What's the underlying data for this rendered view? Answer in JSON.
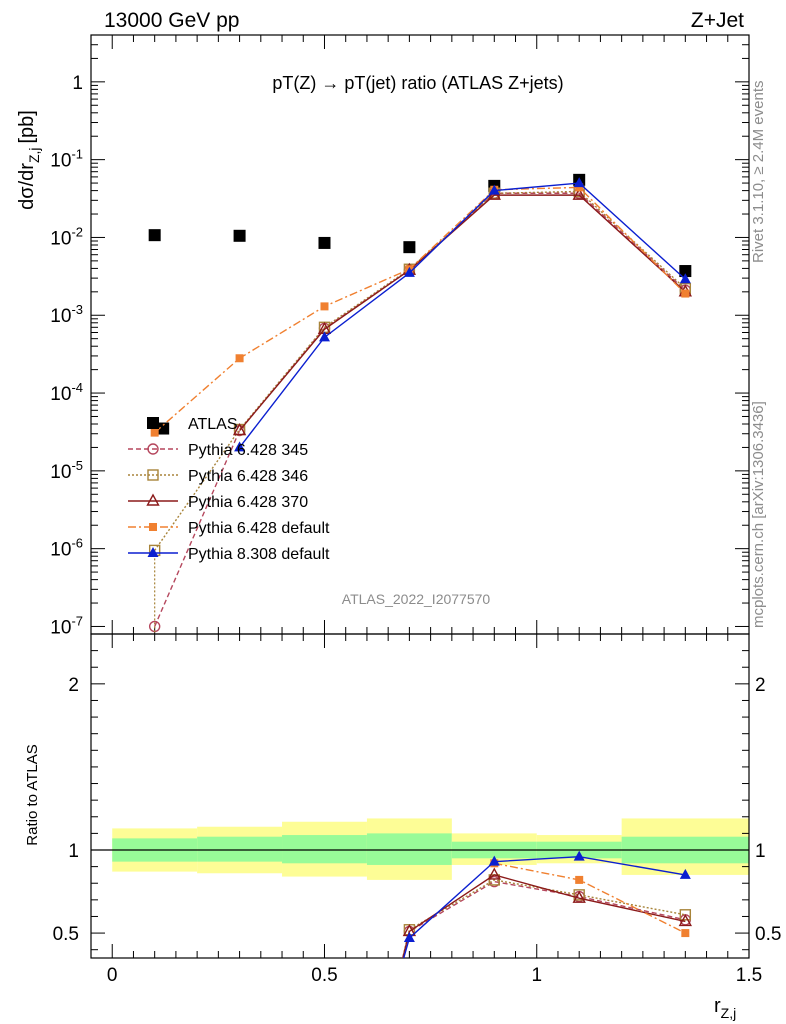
{
  "header": {
    "left": "13000 GeV pp",
    "right": "Z+Jet"
  },
  "plot_title": "pT(Z) → pT(jet) ratio (ATLAS Z+jets)",
  "side_text": {
    "rivet": "Rivet 3.1.10, ≥ 2.4M events",
    "mcplots": "mcplots.cern.ch [arXiv:1306.3436]"
  },
  "watermark": "ATLAS_2022_I2077570",
  "main_ylabel": "dσ/dr",
  "main_ylabel_sub": "Z,j",
  "main_ylabel_unit": "[pb]",
  "ratio_ylabel": "Ratio to ATLAS",
  "xlabel": "r",
  "xlabel_sub": "Z,j",
  "legend": [
    "ATLAS",
    "Pythia 6.428 345",
    "Pythia 6.428 346",
    "Pythia 6.428 370",
    "Pythia 6.428 default",
    "Pythia 8.308 default"
  ],
  "colors": {
    "atlas": "#000000",
    "p345": "#b5475d",
    "p346": "#a8843a",
    "p370": "#8b1a1a",
    "p6def": "#f08030",
    "p8def": "#0b1fd0",
    "band_inner": "#98fb98",
    "band_outer": "#fdfd96"
  },
  "chart_data": [
    {
      "type": "scatter",
      "panel": "main",
      "yscale": "log",
      "xlim": [
        -0.05,
        1.5
      ],
      "ylim": [
        8e-08,
        4
      ],
      "x_ticks": [
        "0",
        "0.5",
        "1",
        "1.5"
      ],
      "y_ticks": [
        "10^-7",
        "10^-6",
        "10^-5",
        "10^-4",
        "10^-3",
        "10^-2",
        "10^-1",
        "1"
      ],
      "bins": [
        [
          0.0,
          0.2
        ],
        [
          0.2,
          0.4
        ],
        [
          0.4,
          0.6
        ],
        [
          0.6,
          0.8
        ],
        [
          0.8,
          1.0
        ],
        [
          1.0,
          1.2
        ],
        [
          1.2,
          1.5
        ]
      ],
      "series": [
        {
          "name": "ATLAS",
          "style": "data",
          "x": [
            0.12,
            0.3,
            0.5,
            0.7,
            0.9,
            1.1,
            1.35
          ],
          "y": [
            3.5e-05,
            0.0105,
            0.0085,
            0.0075,
            0.046,
            0.055,
            0.0037
          ]
        },
        {
          "name": "ATLAS",
          "style": "data",
          "x": [
            0.1
          ],
          "y": [
            0.0107
          ]
        },
        {
          "name": "Pythia 6.428 345",
          "x": [
            0.1,
            0.3,
            0.5,
            0.7,
            0.9,
            1.1,
            1.35
          ],
          "y": [
            1e-07,
            3.3e-05,
            0.00068,
            0.0038,
            0.037,
            0.037,
            0.0021
          ]
        },
        {
          "name": "Pythia 6.428 346",
          "x": [
            0.1,
            0.3,
            0.5,
            0.7,
            0.9,
            1.1,
            1.35
          ],
          "y": [
            9.5e-07,
            3.4e-05,
            0.0007,
            0.0039,
            0.037,
            0.039,
            0.0022
          ]
        },
        {
          "name": "Pythia 6.428 370",
          "x": [
            0.3,
            0.5,
            0.7,
            0.9,
            1.1,
            1.35
          ],
          "y": [
            3.3e-05,
            0.00066,
            0.0038,
            0.035,
            0.035,
            0.002
          ]
        },
        {
          "name": "Pythia 6.428 default",
          "x": [
            0.1,
            0.3,
            0.5,
            0.7,
            0.9,
            1.1,
            1.35
          ],
          "y": [
            3.1e-05,
            0.00028,
            0.0013,
            0.0039,
            0.041,
            0.044,
            0.0019
          ]
        },
        {
          "name": "Pythia 8.308 default",
          "x": [
            0.3,
            0.5,
            0.7,
            0.9,
            1.1,
            1.35
          ],
          "y": [
            2e-05,
            0.00052,
            0.0035,
            0.04,
            0.05,
            0.0029
          ]
        }
      ]
    },
    {
      "type": "line",
      "panel": "ratio",
      "xlim": [
        -0.05,
        1.5
      ],
      "ylim": [
        0.35,
        2.3
      ],
      "y_ticks": [
        "0.5",
        "1",
        "2"
      ],
      "band_bins": [
        [
          0.0,
          0.2
        ],
        [
          0.2,
          0.4
        ],
        [
          0.4,
          0.6
        ],
        [
          0.6,
          0.8
        ],
        [
          0.8,
          1.0
        ],
        [
          1.0,
          1.2
        ],
        [
          1.2,
          1.5
        ]
      ],
      "band_inner": [
        [
          0.93,
          1.07
        ],
        [
          0.93,
          1.08
        ],
        [
          0.92,
          1.09
        ],
        [
          0.91,
          1.1
        ],
        [
          0.95,
          1.05
        ],
        [
          0.95,
          1.05
        ],
        [
          0.92,
          1.08
        ]
      ],
      "band_outer": [
        [
          0.87,
          1.13
        ],
        [
          0.86,
          1.14
        ],
        [
          0.84,
          1.17
        ],
        [
          0.82,
          1.19
        ],
        [
          0.91,
          1.1
        ],
        [
          0.92,
          1.09
        ],
        [
          0.85,
          1.19
        ]
      ],
      "series": [
        {
          "name": "Pythia 6.428 345",
          "x": [
            0.7,
            0.9,
            1.1,
            1.35
          ],
          "y": [
            0.51,
            0.81,
            0.72,
            0.58
          ]
        },
        {
          "name": "Pythia 6.428 346",
          "x": [
            0.7,
            0.9,
            1.1,
            1.35
          ],
          "y": [
            0.52,
            0.82,
            0.73,
            0.61
          ]
        },
        {
          "name": "Pythia 6.428 370",
          "x": [
            0.7,
            0.9,
            1.1,
            1.35
          ],
          "y": [
            0.51,
            0.85,
            0.71,
            0.57
          ]
        },
        {
          "name": "Pythia 6.428 default",
          "x": [
            0.9,
            1.1,
            1.35
          ],
          "y": [
            0.92,
            0.82,
            0.5
          ]
        },
        {
          "name": "Pythia 8.308 default",
          "x": [
            0.7,
            0.9,
            1.1,
            1.35
          ],
          "y": [
            0.47,
            0.93,
            0.96,
            0.85
          ]
        }
      ]
    }
  ]
}
